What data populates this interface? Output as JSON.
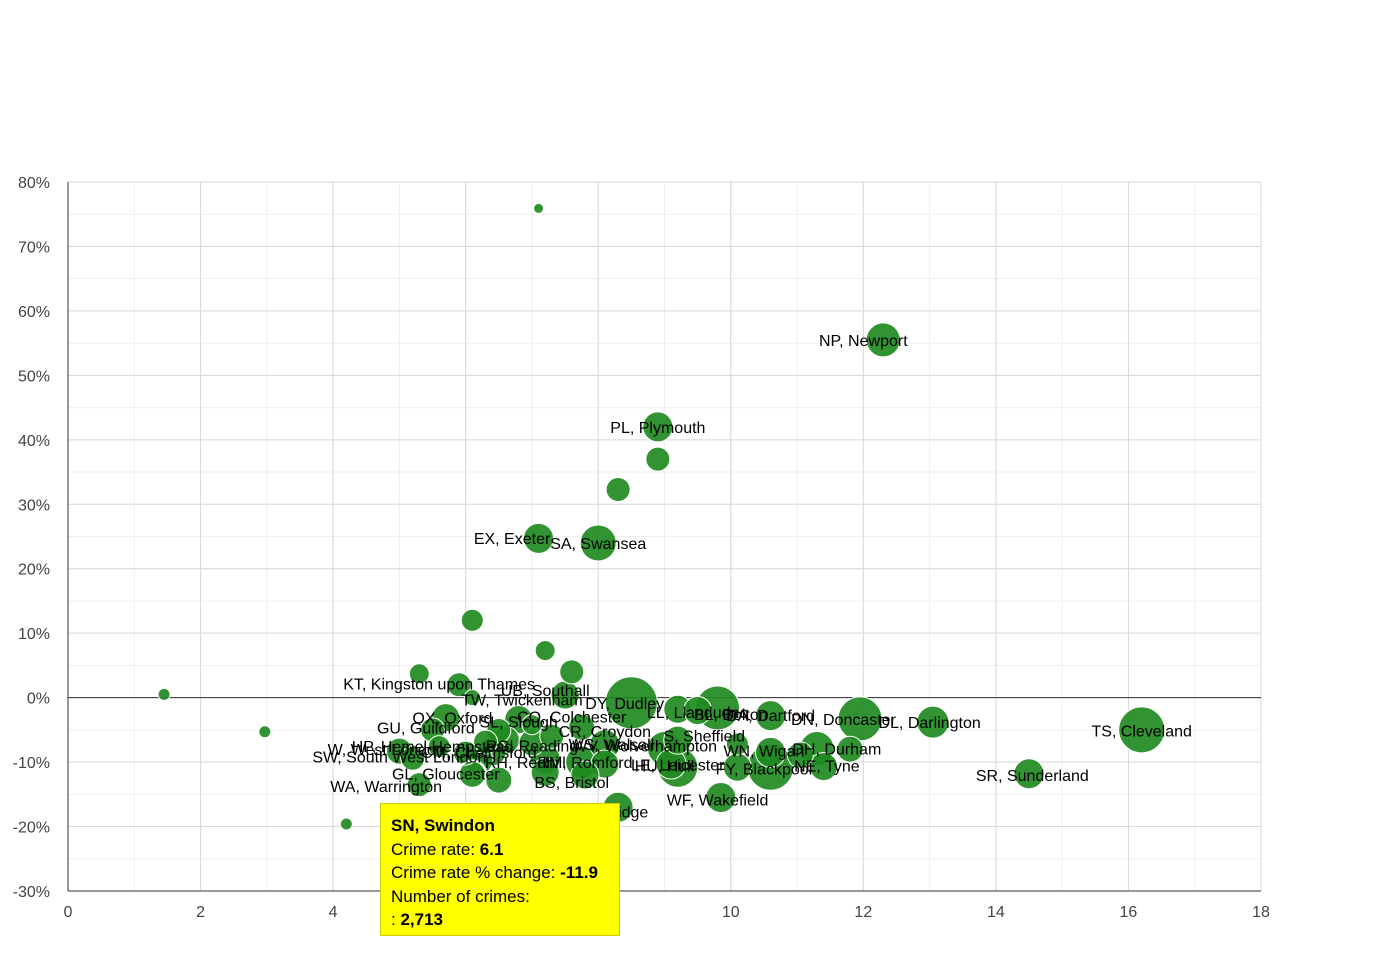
{
  "colors": {
    "bubble": "#1f8a1f",
    "bubble_stroke": "#ffffff",
    "grid": "#d9d9d9",
    "minor_grid": "#efefef",
    "zero_line": "#333333",
    "tooltip_bg": "#ffff00"
  },
  "chart_data": {
    "type": "scatter",
    "title": "",
    "xlabel": "",
    "ylabel": "",
    "xlim": [
      0,
      18
    ],
    "ylim": [
      -30,
      80
    ],
    "x_ticks": [
      0,
      2,
      4,
      6,
      8,
      10,
      12,
      14,
      16,
      18
    ],
    "y_ticks": [
      -30,
      -20,
      -10,
      0,
      10,
      20,
      30,
      40,
      50,
      60,
      70,
      80
    ],
    "x_tick_labels": [
      "0",
      "2",
      "4",
      "6",
      "8",
      "10",
      "12",
      "14",
      "16",
      "18"
    ],
    "y_tick_labels": [
      "-30%",
      "-20%",
      "-10%",
      "0%",
      "10%",
      "20%",
      "30%",
      "40%",
      "50%",
      "60%",
      "70%",
      "80%"
    ],
    "grid": true,
    "points": [
      {
        "x": 7.1,
        "y": 75.9,
        "size": 5,
        "label": ""
      },
      {
        "x": 12.3,
        "y": 55.5,
        "size": 17,
        "label": "NP, Newport"
      },
      {
        "x": 8.9,
        "y": 42.0,
        "size": 15,
        "label": "PL, Plymouth"
      },
      {
        "x": 8.9,
        "y": 37.0,
        "size": 12,
        "label": ""
      },
      {
        "x": 8.3,
        "y": 32.3,
        "size": 12,
        "label": ""
      },
      {
        "x": 7.1,
        "y": 24.7,
        "size": 15,
        "label": "EX, Exeter"
      },
      {
        "x": 8.0,
        "y": 24.0,
        "size": 18,
        "label": "SA, Swansea"
      },
      {
        "x": 6.1,
        "y": 12.0,
        "size": 11,
        "label": ""
      },
      {
        "x": 7.2,
        "y": 7.3,
        "size": 10,
        "label": ""
      },
      {
        "x": 7.6,
        "y": 4.0,
        "size": 12,
        "label": ""
      },
      {
        "x": 1.45,
        "y": 0.5,
        "size": 6,
        "label": ""
      },
      {
        "x": 2.97,
        "y": -5.3,
        "size": 6,
        "label": ""
      },
      {
        "x": 4.2,
        "y": -19.6,
        "size": 6,
        "label": ""
      },
      {
        "x": 5.3,
        "y": 3.7,
        "size": 10,
        "label": ""
      },
      {
        "x": 5.9,
        "y": 2.0,
        "size": 12,
        "label": "KT, Kingston upon Thames"
      },
      {
        "x": 7.5,
        "y": 0.4,
        "size": 14,
        "label": "UB, Southall"
      },
      {
        "x": 6.1,
        "y": 0.0,
        "size": 8,
        "label": "TW, Twickenham"
      },
      {
        "x": 8.5,
        "y": -0.8,
        "size": 26,
        "label": "DY, Dudley"
      },
      {
        "x": 9.2,
        "y": -1.8,
        "size": 14,
        "label": ""
      },
      {
        "x": 9.5,
        "y": -2.0,
        "size": 14,
        "label": "LL, Llandudno"
      },
      {
        "x": 9.8,
        "y": -1.6,
        "size": 22,
        "label": "BL, Bolton"
      },
      {
        "x": 10.6,
        "y": -2.8,
        "size": 15,
        "label": "DA, Dartford"
      },
      {
        "x": 11.95,
        "y": -3.3,
        "size": 22,
        "label": "DN, Doncaster"
      },
      {
        "x": 13.05,
        "y": -3.8,
        "size": 16,
        "label": "DL, Darlington"
      },
      {
        "x": 16.2,
        "y": -5.0,
        "size": 23,
        "label": "TS, Cleveland"
      },
      {
        "x": 5.7,
        "y": -3.1,
        "size": 14,
        "label": "OX, Oxford"
      },
      {
        "x": 6.8,
        "y": -3.4,
        "size": 14,
        "label": "CO, Colchester"
      },
      {
        "x": 5.5,
        "y": -5.0,
        "size": 12,
        "label": "GU, Guildford"
      },
      {
        "x": 6.5,
        "y": -5.1,
        "size": 12,
        "label": "SL, Slough"
      },
      {
        "x": 7.0,
        "y": -4.2,
        "size": 10,
        "label": ""
      },
      {
        "x": 7.75,
        "y": -4.6,
        "size": 13,
        "label": "CR, Croydon"
      },
      {
        "x": 7.3,
        "y": -6.0,
        "size": 12,
        "label": ""
      },
      {
        "x": 9.2,
        "y": -6.6,
        "size": 14,
        "label": "S, Sheffield"
      },
      {
        "x": 6.3,
        "y": -6.9,
        "size": 12,
        "label": ""
      },
      {
        "x": 6.6,
        "y": -6.6,
        "size": 14,
        "label": ""
      },
      {
        "x": 7.0,
        "y": -7.0,
        "size": 13,
        "label": "RG, Reading"
      },
      {
        "x": 8.1,
        "y": -7.3,
        "size": 15,
        "label": "WS, Walsall"
      },
      {
        "x": 9.0,
        "y": -7.9,
        "size": 17,
        "label": "WV, Wolverhampton"
      },
      {
        "x": 10.1,
        "y": -7.2,
        "size": 11,
        "label": ""
      },
      {
        "x": 10.6,
        "y": -8.5,
        "size": 15,
        "label": "WN, Wigan"
      },
      {
        "x": 11.3,
        "y": -7.9,
        "size": 17,
        "label": "DH, Durham"
      },
      {
        "x": 11.05,
        "y": -8.9,
        "size": 13,
        "label": "LA, Lancaster"
      },
      {
        "x": 11.8,
        "y": -8.0,
        "size": 13,
        "label": ""
      },
      {
        "x": 5.0,
        "y": -8.3,
        "size": 13,
        "label": "W, West London"
      },
      {
        "x": 5.6,
        "y": -7.6,
        "size": 11,
        "label": "HP, Hemel Hempstead"
      },
      {
        "x": 6.0,
        "y": -8.6,
        "size": 12,
        "label": ""
      },
      {
        "x": 6.4,
        "y": -8.4,
        "size": 14,
        "label": "CM, Chelmsford"
      },
      {
        "x": 5.2,
        "y": -9.4,
        "size": 12,
        "label": "SW, South West London"
      },
      {
        "x": 6.2,
        "y": -9.7,
        "size": 14,
        "label": "RH, Redhill"
      },
      {
        "x": 7.2,
        "y": -9.5,
        "size": 15,
        "label": ""
      },
      {
        "x": 7.75,
        "y": -10.0,
        "size": 16,
        "label": "RM, Romford"
      },
      {
        "x": 8.1,
        "y": -10.3,
        "size": 14,
        "label": ""
      },
      {
        "x": 9.1,
        "y": -10.3,
        "size": 15,
        "label": "LE, Leicester"
      },
      {
        "x": 9.2,
        "y": -10.8,
        "size": 20,
        "label": "HU, Hull"
      },
      {
        "x": 10.1,
        "y": -10.8,
        "size": 14,
        "label": "FY, Blackpool"
      },
      {
        "x": 10.6,
        "y": -10.8,
        "size": 23,
        "label": ""
      },
      {
        "x": 11.4,
        "y": -10.7,
        "size": 14,
        "label": "NE, Tyne"
      },
      {
        "x": 7.2,
        "y": -11.6,
        "size": 14,
        "label": ""
      },
      {
        "x": 7.8,
        "y": -12.0,
        "size": 14,
        "label": "BS, Bristol"
      },
      {
        "x": 6.1,
        "y": -11.9,
        "size": 13,
        "label": "SN, Swindon"
      },
      {
        "x": 6.5,
        "y": -12.8,
        "size": 13,
        "label": "GL, Gloucester"
      },
      {
        "x": 5.3,
        "y": -13.5,
        "size": 12,
        "label": "WA, Warrington"
      },
      {
        "x": 14.5,
        "y": -11.8,
        "size": 15,
        "label": "SR, Sunderland"
      },
      {
        "x": 9.85,
        "y": -15.5,
        "size": 15,
        "label": "WF, Wakefield"
      },
      {
        "x": 8.3,
        "y": -17.0,
        "size": 15,
        "label": "TN, Tonbridge"
      }
    ],
    "labels": [
      {
        "text": "NP, Newport",
        "x": 12.0,
        "y": 55.5
      },
      {
        "text": "PL, Plymouth",
        "x": 8.9,
        "y": 42.0
      },
      {
        "text": "EX, Exeter",
        "x": 6.7,
        "y": 24.8
      },
      {
        "text": "SA, Swansea",
        "x": 8.0,
        "y": 24.0
      },
      {
        "text": "KT, Kingston upon Thames",
        "x": 5.6,
        "y": 2.2
      },
      {
        "text": "UB, Southall",
        "x": 7.2,
        "y": 1.2
      },
      {
        "text": "TW, Twickenham",
        "x": 6.85,
        "y": -0.3
      },
      {
        "text": "DY, Dudley",
        "x": 8.4,
        "y": -0.8
      },
      {
        "text": "LL, Llandudno",
        "x": 9.5,
        "y": -2.2
      },
      {
        "text": "BL, Bolton",
        "x": 10.0,
        "y": -2.5
      },
      {
        "text": "DA, Dartford",
        "x": 10.6,
        "y": -2.7
      },
      {
        "text": "DN, Doncaster",
        "x": 11.7,
        "y": -3.3
      },
      {
        "text": "DL, Darlington",
        "x": 13.0,
        "y": -3.8
      },
      {
        "text": "TS, Cleveland",
        "x": 16.2,
        "y": -5.1
      },
      {
        "text": "OX, Oxford",
        "x": 5.8,
        "y": -3.1
      },
      {
        "text": "CO, Colchester",
        "x": 7.6,
        "y": -2.9
      },
      {
        "text": "GU, Guildford",
        "x": 5.4,
        "y": -4.6
      },
      {
        "text": "SL, Slough",
        "x": 6.8,
        "y": -3.7
      },
      {
        "text": "CR, Croydon",
        "x": 8.1,
        "y": -5.2
      },
      {
        "text": "S, Sheffield",
        "x": 9.6,
        "y": -5.9
      },
      {
        "text": "RG, Reading",
        "x": 7.0,
        "y": -7.4
      },
      {
        "text": "WV, Wolverhampton",
        "x": 8.7,
        "y": -7.4
      },
      {
        "text": "WS, Walsall",
        "x": 8.2,
        "y": -7.2
      },
      {
        "text": "WN, Wigan",
        "x": 10.5,
        "y": -8.2
      },
      {
        "text": "DH, Durham",
        "x": 11.6,
        "y": -7.9
      },
      {
        "text": "W, West London",
        "x": 4.8,
        "y": -8.0
      },
      {
        "text": "HP, Hemel Hempstead",
        "x": 5.5,
        "y": -7.5
      },
      {
        "text": "CM, Chelmsford",
        "x": 6.2,
        "y": -8.4
      },
      {
        "text": "SW, South West London",
        "x": 5.0,
        "y": -9.1
      },
      {
        "text": "RH, Redhill",
        "x": 6.9,
        "y": -10.0
      },
      {
        "text": "RM, Romford",
        "x": 7.8,
        "y": -10.0
      },
      {
        "text": "LE, Leicester",
        "x": 9.2,
        "y": -10.4
      },
      {
        "text": "HU, Hull",
        "x": 9.0,
        "y": -10.5
      },
      {
        "text": "FY, Blackpool",
        "x": 10.5,
        "y": -11.0
      },
      {
        "text": "NE, Tyne",
        "x": 11.45,
        "y": -10.5
      },
      {
        "text": "BS, Bristol",
        "x": 7.6,
        "y": -13.1
      },
      {
        "text": "GL, Gloucester",
        "x": 5.7,
        "y": -11.8
      },
      {
        "text": "WA, Warrington",
        "x": 4.8,
        "y": -13.7
      },
      {
        "text": "SR, Sunderland",
        "x": 14.55,
        "y": -12.0
      },
      {
        "text": "WF, Wakefield",
        "x": 9.8,
        "y": -15.8
      },
      {
        "text": "TN, Tonbridge",
        "x": 8.0,
        "y": -17.7
      }
    ],
    "highlight_point": {
      "x": 6.1,
      "y": -11.9
    }
  },
  "tooltip": {
    "title": "SN, Swindon",
    "crime_rate_label": "Crime rate: ",
    "crime_rate_value": "6.1",
    "change_label": "Crime rate % change: ",
    "change_value": "-11.9",
    "count_label": "Number of crimes:",
    "count_prefix": ": ",
    "count_value": "2,713"
  }
}
